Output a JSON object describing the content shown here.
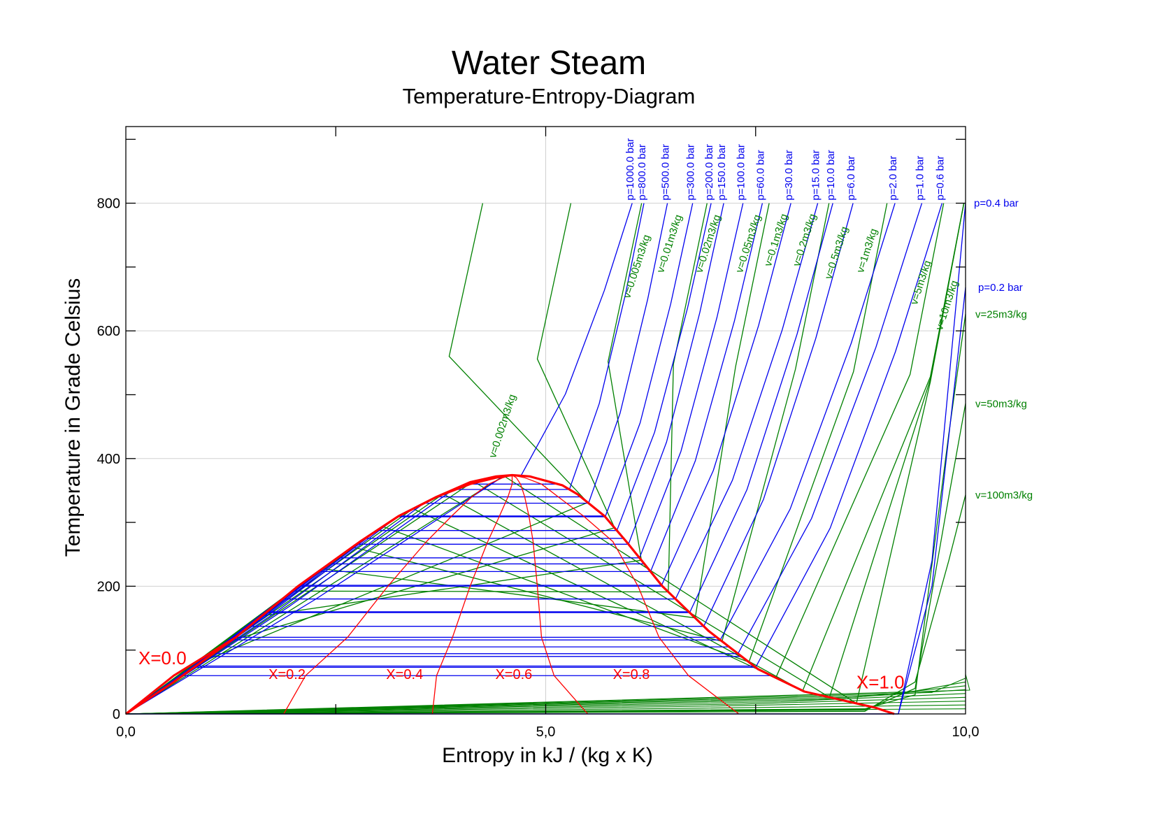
{
  "chart_data": {
    "type": "line",
    "title": "Water Steam",
    "subtitle": "Temperature-Entropy-Diagram",
    "xlabel": "Entropy in kJ / (kg x K)",
    "ylabel": "Temperature in Grade Celsius",
    "xlim": [
      0,
      10
    ],
    "ylim": [
      0,
      920
    ],
    "xticks": [
      {
        "value": 0,
        "label": "0,0"
      },
      {
        "value": 5,
        "label": "5,0"
      },
      {
        "value": 10,
        "label": "10,0"
      }
    ],
    "yticks": [
      {
        "value": 0,
        "label": "0"
      },
      {
        "value": 200,
        "label": "200"
      },
      {
        "value": 400,
        "label": "400"
      },
      {
        "value": 600,
        "label": "600"
      },
      {
        "value": 800,
        "label": "800"
      }
    ],
    "grid": true,
    "colors": {
      "isobar": "#0000ee",
      "isochore": "#008000",
      "quality": "#ff0000",
      "axis": "#000000",
      "grid": "#d0d0d0"
    },
    "saturation_dome": {
      "x": [
        0,
        0.57,
        1.31,
        2.05,
        2.79,
        3.25,
        3.7,
        4.1,
        4.41,
        4.6,
        4.81,
        5.2,
        5.38,
        5.7,
        5.96,
        6.39,
        6.94,
        7.53,
        8.08,
        8.92,
        9.15
      ],
      "y": [
        0,
        50,
        120,
        200,
        270,
        310,
        340,
        363,
        372,
        374,
        372,
        358,
        344,
        310,
        270,
        200,
        130,
        70,
        35,
        10,
        0
      ]
    },
    "quality_lines": [
      {
        "label": "X=0.0",
        "label_at": [
          0.15,
          78
        ],
        "label_size": 26,
        "x": [
          0,
          0.57,
          1.31,
          2.05,
          2.79,
          3.25,
          3.7,
          4.1,
          4.41,
          4.6
        ]
      },
      {
        "label": "X=0.2",
        "label_at": [
          1.7,
          55
        ],
        "label_size": 20,
        "x": [
          1.88,
          2.14,
          2.64,
          3.12,
          3.58,
          3.88,
          4.12,
          4.32,
          4.49,
          4.6
        ]
      },
      {
        "label": "X=0.4",
        "label_at": [
          3.1,
          55
        ],
        "label_size": 20,
        "x": [
          3.65,
          3.7,
          3.89,
          4.1,
          4.31,
          4.45,
          4.55,
          4.6,
          4.6,
          4.6
        ]
      },
      {
        "label": "X=0.6",
        "label_at": [
          4.4,
          55
        ],
        "label_size": 20,
        "x": [
          5.5,
          5.1,
          4.95,
          4.9,
          4.85,
          4.8,
          4.75,
          4.7,
          4.65,
          4.6
        ]
      },
      {
        "label": "X=0.8",
        "label_at": [
          5.8,
          55
        ],
        "label_size": 20,
        "x": [
          7.3,
          6.7,
          6.35,
          6.1,
          5.8,
          5.45,
          5.15,
          4.95,
          4.75,
          4.6
        ]
      },
      {
        "label": "X=1.0",
        "label_at": [
          8.7,
          40
        ],
        "label_size": 26,
        "x": [
          9.15,
          8.08,
          7.22,
          6.39,
          5.96,
          5.7,
          5.38,
          5.0,
          4.72,
          4.6
        ]
      }
    ],
    "quality_levels_y": [
      0,
      60,
      120,
      200,
      270,
      310,
      340,
      360,
      370,
      374
    ],
    "isobars": [
      {
        "label": "p=1000.0 bar",
        "s800": 6.03
      },
      {
        "label": "p=800.0 bar",
        "s800": 6.17
      },
      {
        "label": "p=500.0 bar",
        "s800": 6.45
      },
      {
        "label": "p=300.0 bar",
        "s800": 6.75
      },
      {
        "label": "p=200.0 bar",
        "s800": 6.97
      },
      {
        "label": "p=150.0 bar",
        "s800": 7.12
      },
      {
        "label": "p=100.0 bar",
        "s800": 7.35
      },
      {
        "label": "p=60.0 bar",
        "s800": 7.58
      },
      {
        "label": "p=30.0 bar",
        "s800": 7.92
      },
      {
        "label": "p=15.0 bar",
        "s800": 8.24
      },
      {
        "label": "p=10.0 bar",
        "s800": 8.42
      },
      {
        "label": "p=6.0 bar",
        "s800": 8.66
      },
      {
        "label": "p=2.0 bar",
        "s800": 9.16
      },
      {
        "label": "p=1.0 bar",
        "s800": 9.48
      },
      {
        "label": "p=0.6 bar",
        "s800": 9.72
      }
    ],
    "side_isobars": [
      {
        "label": "p=0.4 bar",
        "y": 800
      },
      {
        "label": "p=0.2 bar",
        "y": 668
      }
    ],
    "isochores": [
      {
        "label": "v=0.002m3/kg",
        "label_at": [
          4.4,
          400
        ]
      },
      {
        "label": "v=0.005m3/kg",
        "label_at": [
          6.0,
          650
        ]
      },
      {
        "label": "v=0.01m3/kg",
        "label_at": [
          6.4,
          690
        ]
      },
      {
        "label": "v=0.02m3/kg",
        "label_at": [
          6.86,
          690
        ]
      },
      {
        "label": "v=0.05m3/kg",
        "label_at": [
          7.34,
          690
        ]
      },
      {
        "label": "v=0.1m3/kg",
        "label_at": [
          7.68,
          700
        ]
      },
      {
        "label": "v=0.2m3/kg",
        "label_at": [
          8.02,
          700
        ]
      },
      {
        "label": "v=0.5m3/kg",
        "label_at": [
          8.4,
          680
        ]
      },
      {
        "label": "v=1m3/kg",
        "label_at": [
          8.78,
          690
        ]
      },
      {
        "label": "v=5m3/kg",
        "label_at": [
          9.42,
          640
        ]
      },
      {
        "label": "v=10m3/kg",
        "label_at": [
          9.72,
          600
        ]
      }
    ],
    "side_isochores": [
      {
        "label": "v=25m3/kg",
        "y": 626
      },
      {
        "label": "v=50m3/kg",
        "y": 486
      },
      {
        "label": "v=100m3/kg",
        "y": 343
      }
    ]
  }
}
